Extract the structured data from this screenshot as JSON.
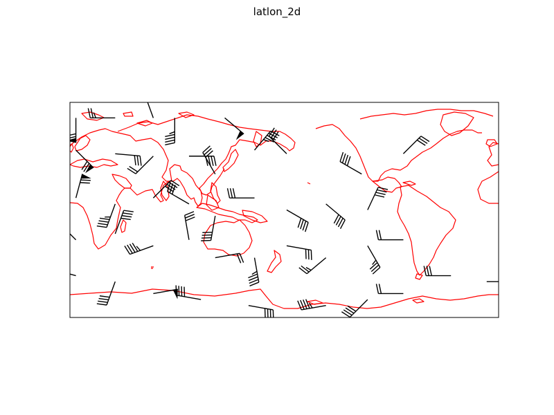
{
  "title": "latlon_2d",
  "colors": {
    "coastline": "#ff0000",
    "barbs": "#000000",
    "frame": "#000000",
    "background": "#ffffff"
  },
  "map": {
    "projection": "PlateCarree",
    "central_longitude": 180,
    "extent": {
      "lon": [
        0,
        360
      ],
      "lat": [
        -90,
        90
      ]
    }
  },
  "barbs": [
    {
      "lon": 5,
      "lat": 77,
      "speed": 70,
      "dir": 180
    },
    {
      "lon": 38,
      "lat": 77,
      "speed": 25,
      "dir": 270
    },
    {
      "lon": 70,
      "lat": 77,
      "speed": 40,
      "dir": 340
    },
    {
      "lon": 88,
      "lat": 77,
      "speed": 45,
      "dir": 180
    },
    {
      "lon": 130,
      "lat": 77,
      "speed": 50,
      "dir": 130
    },
    {
      "lon": 5,
      "lat": 50,
      "speed": 70,
      "dir": 135
    },
    {
      "lon": 38,
      "lat": 47,
      "speed": 30,
      "dir": 95
    },
    {
      "lon": 70,
      "lat": 45,
      "speed": 20,
      "dir": 225
    },
    {
      "lon": 100,
      "lat": 45,
      "speed": 40,
      "dir": 90
    },
    {
      "lon": 122,
      "lat": 30,
      "speed": 30,
      "dir": 330
    },
    {
      "lon": 155,
      "lat": 50,
      "speed": 45,
      "dir": 40
    },
    {
      "lon": 182,
      "lat": 47,
      "speed": 30,
      "dir": 315
    },
    {
      "lon": 245,
      "lat": 30,
      "speed": 40,
      "dir": 300
    },
    {
      "lon": 280,
      "lat": 47,
      "speed": 30,
      "dir": 45
    },
    {
      "lon": 5,
      "lat": 10,
      "speed": 70,
      "dir": 15
    },
    {
      "lon": 38,
      "lat": 5,
      "speed": 45,
      "dir": 200
    },
    {
      "lon": 70,
      "lat": 10,
      "speed": 40,
      "dir": 45
    },
    {
      "lon": 100,
      "lat": 5,
      "speed": 30,
      "dir": 300
    },
    {
      "lon": 122,
      "lat": -5,
      "speed": 40,
      "dir": 190
    },
    {
      "lon": 155,
      "lat": 10,
      "speed": 30,
      "dir": 270
    },
    {
      "lon": 182,
      "lat": 0,
      "speed": 40,
      "dir": 120
    },
    {
      "lon": 215,
      "lat": 5,
      "speed": 40,
      "dir": 130
    },
    {
      "lon": 250,
      "lat": 0,
      "speed": 40,
      "dir": 25
    },
    {
      "lon": 5,
      "lat": -25,
      "speed": 20,
      "dir": 315
    },
    {
      "lon": 38,
      "lat": -20,
      "speed": 40,
      "dir": 20
    },
    {
      "lon": 70,
      "lat": -30,
      "speed": 45,
      "dir": 250
    },
    {
      "lon": 100,
      "lat": -25,
      "speed": 30,
      "dir": 350
    },
    {
      "lon": 122,
      "lat": -40,
      "speed": 20,
      "dir": 80
    },
    {
      "lon": 155,
      "lat": -40,
      "speed": 45,
      "dir": 170
    },
    {
      "lon": 182,
      "lat": -30,
      "speed": 30,
      "dir": 100
    },
    {
      "lon": 215,
      "lat": -40,
      "speed": 25,
      "dir": 230
    },
    {
      "lon": 250,
      "lat": -30,
      "speed": 35,
      "dir": 150
    },
    {
      "lon": 280,
      "lat": -25,
      "speed": 20,
      "dir": 270
    },
    {
      "lon": 5,
      "lat": -55,
      "speed": 30,
      "dir": 285
    },
    {
      "lon": 38,
      "lat": -60,
      "speed": 40,
      "dir": 200
    },
    {
      "lon": 70,
      "lat": -70,
      "speed": 50,
      "dir": 80
    },
    {
      "lon": 110,
      "lat": -75,
      "speed": 40,
      "dir": 280
    },
    {
      "lon": 150,
      "lat": -80,
      "speed": 40,
      "dir": 100
    },
    {
      "lon": 215,
      "lat": -80,
      "speed": 45,
      "dir": 260
    },
    {
      "lon": 250,
      "lat": -75,
      "speed": 40,
      "dir": 225
    },
    {
      "lon": 280,
      "lat": -70,
      "speed": 20,
      "dir": 270
    },
    {
      "lon": 320,
      "lat": -55,
      "speed": 30,
      "dir": 270
    },
    {
      "lon": 350,
      "lat": -60,
      "speed": 20,
      "dir": 90
    }
  ]
}
